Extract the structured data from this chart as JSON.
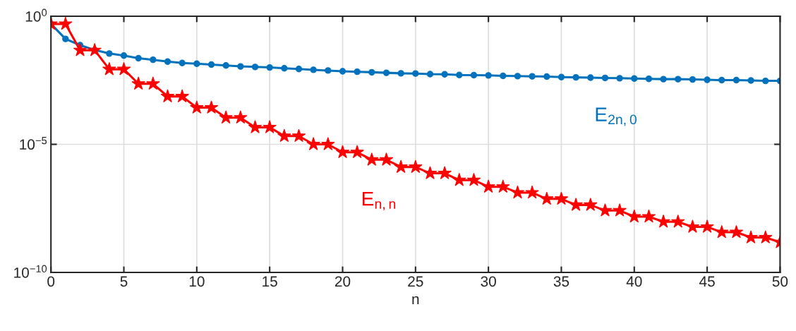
{
  "chart_data": {
    "type": "line",
    "xlabel": "n",
    "log": "y",
    "grid": true,
    "legend": false,
    "x": [
      0,
      1,
      2,
      3,
      4,
      5,
      6,
      7,
      8,
      9,
      10,
      11,
      12,
      13,
      14,
      15,
      16,
      17,
      18,
      19,
      20,
      21,
      22,
      23,
      24,
      25,
      26,
      27,
      28,
      29,
      30,
      31,
      32,
      33,
      34,
      35,
      36,
      37,
      38,
      39,
      40,
      41,
      42,
      43,
      44,
      45,
      46,
      47,
      48,
      49,
      50
    ],
    "xlim": [
      0,
      50
    ],
    "xticks": [
      0,
      5,
      10,
      15,
      20,
      25,
      30,
      35,
      40,
      45,
      50
    ],
    "ylim": [
      1e-10,
      1
    ],
    "yticks": [
      {
        "value": 1,
        "label": "10$^{0}$"
      },
      {
        "value": 1e-05,
        "label": "10$^{−5}$"
      },
      {
        "value": 1e-10,
        "label": "10$^{−10}$"
      }
    ],
    "series": [
      {
        "name": "E$_{2n,0}$",
        "color": "#0072bd",
        "marker": "circle",
        "values": [
          0.5,
          0.13,
          0.074,
          0.048,
          0.035,
          0.029,
          0.023,
          0.02,
          0.017,
          0.015,
          0.014,
          0.013,
          0.012,
          0.011,
          0.0105,
          0.01,
          0.0093,
          0.0087,
          0.0081,
          0.0076,
          0.0071,
          0.0068,
          0.0065,
          0.0062,
          0.0059,
          0.0058,
          0.0055,
          0.0054,
          0.0051,
          0.005,
          0.0049,
          0.0047,
          0.0046,
          0.0045,
          0.0044,
          0.0042,
          0.0041,
          0.004,
          0.0039,
          0.0038,
          0.0037,
          0.0036,
          0.0035,
          0.0035,
          0.0034,
          0.0033,
          0.0032,
          0.0032,
          0.0031,
          0.003,
          0.003
        ]
      },
      {
        "name": "E$_{n,n}$",
        "color": "#ff0000",
        "marker": "star",
        "values": [
          0.5,
          0.5,
          0.047,
          0.047,
          0.0085,
          0.0085,
          0.0023,
          0.0023,
          0.00074,
          0.00074,
          0.00027,
          0.00027,
          0.00011,
          0.00011,
          4.6e-05,
          4.6e-05,
          2.1e-05,
          2.1e-05,
          1e-05,
          1e-05,
          4.9e-06,
          4.9e-06,
          2.5e-06,
          2.5e-06,
          1.3e-06,
          1.3e-06,
          7.4e-07,
          7.4e-07,
          4e-07,
          4e-07,
          2.2e-07,
          2.2e-07,
          1.3e-07,
          1.3e-07,
          7.4e-08,
          7.4e-08,
          4.3e-08,
          4.3e-08,
          2.6e-08,
          2.6e-08,
          1.5e-08,
          1.5e-08,
          9.5e-09,
          9.5e-09,
          6e-09,
          6e-09,
          3.7e-09,
          3.7e-09,
          2.3e-09,
          2.3e-09,
          1.5e-09
        ]
      }
    ]
  }
}
